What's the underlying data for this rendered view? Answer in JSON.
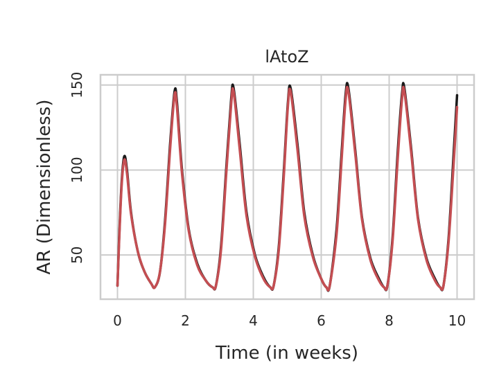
{
  "chart_data": {
    "type": "line",
    "title": "lAtoZ",
    "xlabel": "Time (in weeks)",
    "ylabel": "AR (Dimensionless)",
    "xlim": [
      -0.5,
      10.5
    ],
    "ylim": [
      24,
      156
    ],
    "xticks": [
      0,
      2,
      4,
      6,
      8,
      10
    ],
    "yticks": [
      50,
      100,
      150
    ],
    "grid": true,
    "colors": {
      "series_1": "#1a1a1a",
      "series_2": "#c44e52",
      "grid": "#cccccc",
      "frame": "#cccccc"
    },
    "series": [
      {
        "x": [
          0,
          0.05,
          0.12,
          0.2,
          0.28,
          0.4,
          0.6,
          0.8,
          1.0,
          1.1,
          1.25,
          1.4,
          1.55,
          1.68,
          1.75,
          1.9,
          2.1,
          2.35,
          2.6,
          2.8,
          2.9,
          3.05,
          3.2,
          3.35,
          3.42,
          3.6,
          3.8,
          4.05,
          4.3,
          4.5,
          4.6,
          4.75,
          4.9,
          5.02,
          5.1,
          5.3,
          5.5,
          5.75,
          6.0,
          6.15,
          6.25,
          6.45,
          6.6,
          6.72,
          6.8,
          7.0,
          7.2,
          7.45,
          7.7,
          7.85,
          7.95,
          8.1,
          8.25,
          8.38,
          8.45,
          8.65,
          8.85,
          9.1,
          9.35,
          9.5,
          9.6,
          9.75,
          9.9,
          10.0
        ],
        "values": [
          32,
          60,
          92,
          108,
          100,
          75,
          52,
          40,
          33,
          31,
          40,
          70,
          115,
          146,
          140,
          100,
          65,
          45,
          35,
          31,
          32,
          55,
          100,
          142,
          148,
          115,
          75,
          50,
          37,
          31,
          32,
          55,
          100,
          140,
          148,
          115,
          75,
          50,
          36,
          31,
          32,
          65,
          110,
          145,
          148,
          112,
          72,
          48,
          36,
          31,
          32,
          60,
          110,
          145,
          148,
          112,
          72,
          48,
          36,
          31,
          32,
          60,
          110,
          144
        ]
      },
      {
        "x": [
          0,
          0.05,
          0.12,
          0.2,
          0.28,
          0.4,
          0.6,
          0.8,
          1.0,
          1.1,
          1.25,
          1.4,
          1.55,
          1.68,
          1.75,
          1.9,
          2.1,
          2.35,
          2.6,
          2.8,
          2.9,
          3.05,
          3.2,
          3.35,
          3.42,
          3.6,
          3.8,
          4.05,
          4.3,
          4.5,
          4.6,
          4.75,
          4.9,
          5.02,
          5.1,
          5.3,
          5.5,
          5.75,
          6.0,
          6.15,
          6.25,
          6.45,
          6.6,
          6.72,
          6.8,
          7.0,
          7.2,
          7.45,
          7.7,
          7.85,
          7.95,
          8.1,
          8.25,
          8.38,
          8.45,
          8.65,
          8.85,
          9.1,
          9.35,
          9.5,
          9.6,
          9.75,
          9.9,
          10.0
        ],
        "values": [
          32,
          58,
          90,
          106,
          98,
          74,
          52,
          40,
          33,
          31,
          40,
          68,
          112,
          144,
          137,
          98,
          64,
          44,
          35,
          31,
          32,
          53,
          97,
          139,
          146,
          112,
          73,
          49,
          36,
          31,
          32,
          53,
          97,
          138,
          146,
          112,
          73,
          49,
          36,
          31,
          32,
          62,
          106,
          142,
          146,
          110,
          71,
          47,
          35,
          31,
          32,
          58,
          106,
          142,
          146,
          110,
          71,
          47,
          35,
          31,
          32,
          58,
          104,
          137
        ]
      }
    ]
  }
}
